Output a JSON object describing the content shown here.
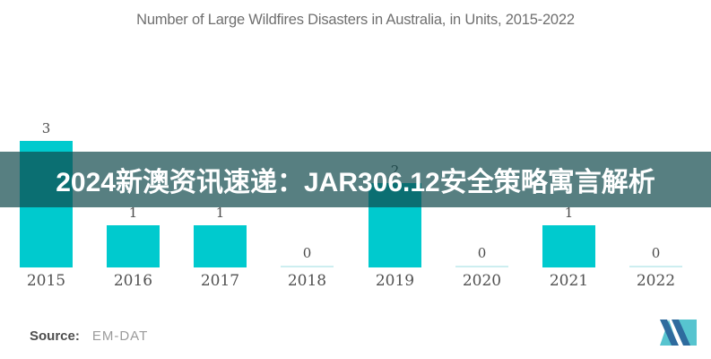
{
  "title": "Number of Large Wildfires Disasters in Australia, in Units, 2015-2022",
  "overlay_banner": {
    "text": "2024新澳资讯速递：JAR306.12安全策略寓言解析",
    "background_color": "rgba(15,72,75,0.70)",
    "text_color": "#ffffff"
  },
  "chart_data": {
    "type": "bar",
    "title": "Number of Large Wildfires Disasters in Australia, in Units, 2015-2022",
    "categories": [
      "2015",
      "2016",
      "2017",
      "2018",
      "2019",
      "2020",
      "2021",
      "2022"
    ],
    "values": [
      3,
      1,
      1,
      0,
      2,
      0,
      1,
      0
    ],
    "value_labels": [
      "3",
      "1",
      "1",
      "0",
      "2",
      "0",
      "1",
      "0"
    ],
    "xlabel": "",
    "ylabel": "",
    "ylim": [
      0,
      3
    ],
    "grid": false,
    "legend": false,
    "bar_color": "#00CACE",
    "zero_line_color": "#cdeef0",
    "value_label_color": "#4b4b4b",
    "axis_label_color": "#525252"
  },
  "footer": {
    "source_label": "Source:",
    "source_value": "EM-DAT"
  },
  "logo": {
    "name": "mordor-intelligence-logo",
    "navy": "#2e6b9e",
    "teal": "#57c4cf"
  },
  "colors": {
    "background": "#ffffff",
    "title_text": "#6f6f6f"
  }
}
